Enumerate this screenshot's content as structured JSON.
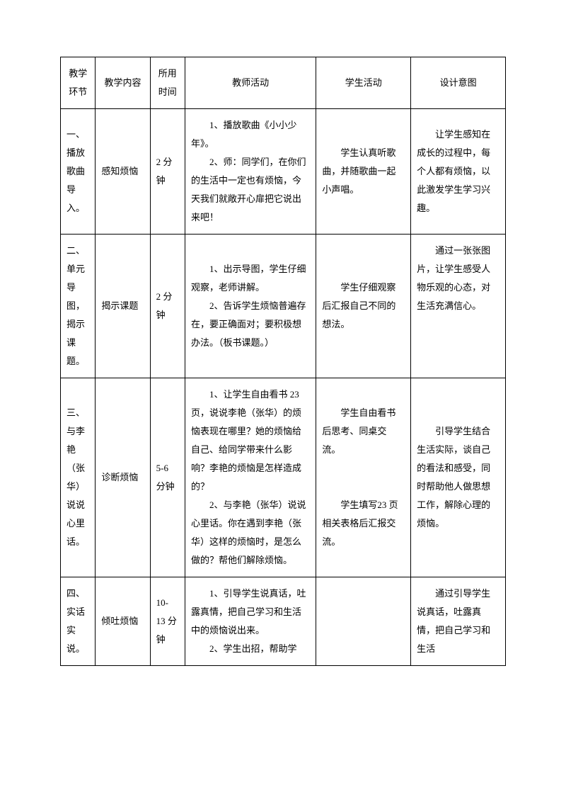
{
  "headers": {
    "stage": "教学\n环节",
    "content": "教学内容",
    "time": "所用\n时间",
    "teacher": "教师活动",
    "student": "学生活动",
    "purpose": "设计意图"
  },
  "rows": [
    {
      "stage": "一、\n播放\n歌曲\n导入。",
      "content": "感知烦恼",
      "time": "2 分\n钟",
      "teacher": "　　1、播放歌曲《小小少年》。\n　　2、师：同学们，在你们的生活中一定也有烦恼，今天我们就敞开心扉把它说出来吧！",
      "student": "　　学生认真听歌曲，并随歌曲一起小声唱。",
      "purpose": "　　让学生感知在成长的过程中，每个人都有烦恼，以此激发学生学习兴趣。"
    },
    {
      "stage": "二、\n单元\n导图，\n揭示\n课题。",
      "content": "揭示课题",
      "time": "2 分\n钟",
      "teacher": "　　1、出示导图，学生仔细观察，老师讲解。\n　　2、告诉学生烦恼普遍存在，要正确面对；要积极想办法。（板书课题。）",
      "student": "　　学生仔细观察后汇报自己不同的想法。",
      "purpose": "　　通过一张张图片，让学生感受人物乐观的心态，对生活充满信心。"
    },
    {
      "stage": "三、\n与李\n艳\n（张\n华）\n说说\n心里\n话。",
      "content": "诊断烦恼",
      "time": "5-6\n分钟",
      "teacher": "　　1、让学生自由看书 23页，说说李艳（张华）的烦恼表现在哪里？她的烦恼给自己、给同学带来什么影响？李艳的烦恼是怎样造成的？\n　　2、与李艳（张华）说说心里话。你在遇到李艳（张华）这样的烦恼时，是怎么做的？帮他们解除烦恼。",
      "student": "　　学生自由看书后思考、同桌交流。\n\n\n　　学生填写23 页相关表格后汇报交流。",
      "purpose": "　　引导学生结合生活实际，谈自己的看法和感受，同时帮助他人做思想工作，解除心理的烦恼。"
    },
    {
      "stage": "四、\n实话\n实说。",
      "content": "倾吐烦恼",
      "time": "10-\n13 分\n钟",
      "teacher": "　　1、引导学生说真话，吐露真情，把自己学习和生活中的烦恼说出来。\n　　2、学生出招，帮助学",
      "student": "",
      "purpose": "　　通过引导学生说真话，吐露真情，把自己学习和生活"
    }
  ]
}
